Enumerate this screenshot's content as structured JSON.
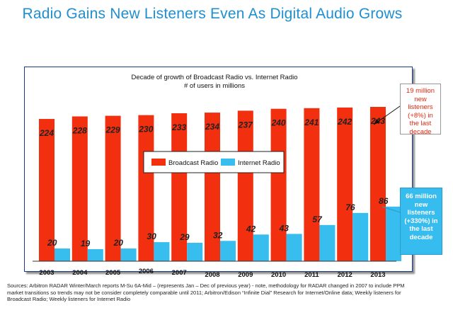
{
  "headline": "Radio Gains New Listeners Even As Digital Audio Grows",
  "chart_data": {
    "type": "bar",
    "title": "Decade of growth of Broadcast Radio vs. Internet Radio",
    "subtitle": "# of users in millions",
    "categories": [
      "2003",
      "2004",
      "2005",
      "2006",
      "2007",
      "2008",
      "2009",
      "2010",
      "2011",
      "2012",
      "2013"
    ],
    "series": [
      {
        "name": "Broadcast Radio",
        "color": "#f22f0f",
        "values": [
          224,
          228,
          229,
          230,
          233,
          234,
          237,
          240,
          241,
          242,
          243
        ]
      },
      {
        "name": "Internet Radio",
        "color": "#37bdee",
        "values": [
          20,
          19,
          20,
          30,
          29,
          32,
          42,
          43,
          57,
          76,
          86
        ]
      }
    ],
    "legend_position": "center",
    "grid": false
  },
  "callouts": {
    "broadcast": "19 million new listeners (+8%) in the last decade",
    "internet": "66 million new listeners (+330%) in the last decade"
  },
  "sources": "Sources: Arbitron RADAR Winter/March reports M-Su 6A-Mid – (represents Jan – Dec of previous year) - note, methodology for RADAR changed in 2007 to include PPM market transitions so trends may not be consider completely comparable until 2011; Arbitron/Edison “Infinite Dial” Research for Internet/Online data; Weekly listeners for Broadcast Radio; Weekly listeners for Internet Radio"
}
